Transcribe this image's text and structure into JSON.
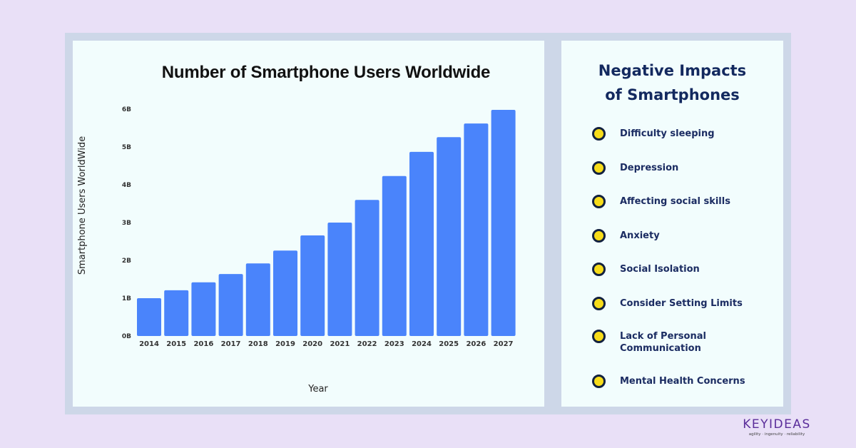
{
  "chart_data": {
    "type": "bar",
    "title": "Number of Smartphone Users Worldwide",
    "xlabel": "Year",
    "ylabel": "Smartphone Users WorldWide",
    "categories": [
      "2014",
      "2015",
      "2016",
      "2017",
      "2018",
      "2019",
      "2020",
      "2021",
      "2022",
      "2023",
      "2024",
      "2025",
      "2026",
      "2027"
    ],
    "values": [
      1.0,
      1.21,
      1.42,
      1.64,
      1.92,
      2.26,
      2.66,
      3.0,
      3.6,
      4.23,
      4.87,
      5.26,
      5.62,
      5.98
    ],
    "unit": "billions",
    "yticks": [
      0,
      1,
      2,
      3,
      4,
      5,
      6
    ],
    "ytick_labels": [
      "0B",
      "1B",
      "2B",
      "3B",
      "4B",
      "5B",
      "6B"
    ],
    "ylim": [
      0,
      6
    ],
    "grid": false,
    "bar_color": "#4a84fb"
  },
  "sidebar": {
    "title_line1": "Negative Impacts",
    "title_line2": "of Smartphones",
    "items": [
      {
        "label": "Difficulty sleeping"
      },
      {
        "label": "Depression"
      },
      {
        "label": "Affecting social skills"
      },
      {
        "label": "Anxiety"
      },
      {
        "label": "Social Isolation"
      },
      {
        "label": "Consider Setting Limits"
      },
      {
        "label": "Lack of Personal Communication"
      },
      {
        "label": "Mental Health Concerns"
      }
    ]
  },
  "brand": {
    "name": "KEYIDEAS",
    "tagline": "agility  ·  ingenuity  ·  reliability"
  }
}
